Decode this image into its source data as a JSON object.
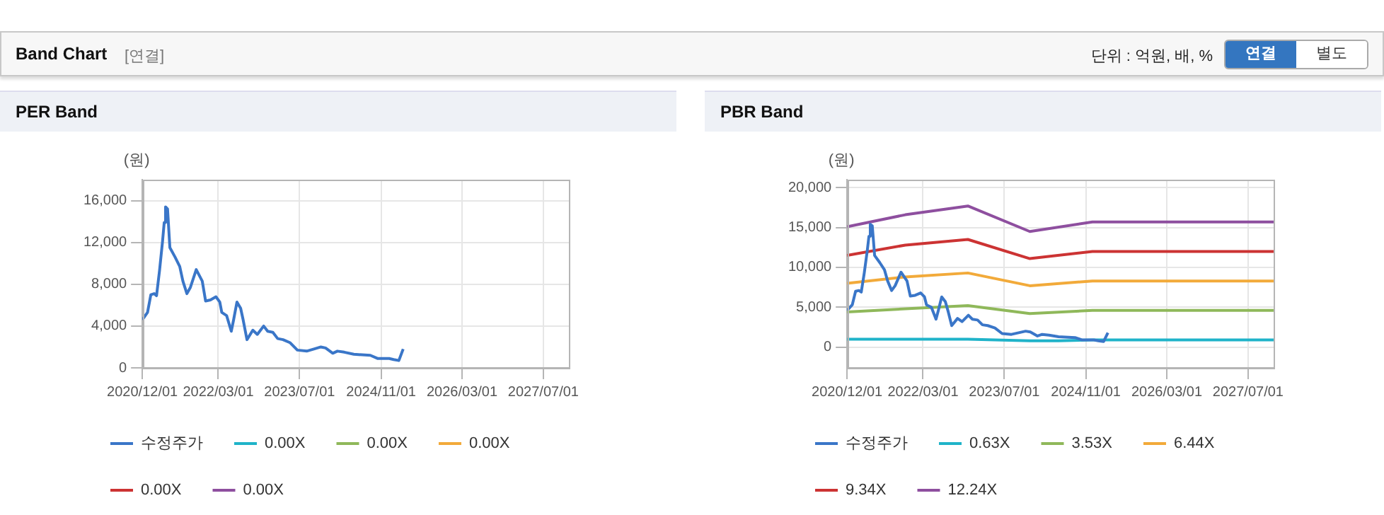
{
  "chart_data": [
    {
      "type": "other",
      "title": "Band Chart",
      "subtitle": "[연결]",
      "annotations": [
        "단위 : 억원, 배, %",
        "연결",
        "별도"
      ]
    },
    {
      "type": "line",
      "title": "PER Band",
      "ylabel": "(원)",
      "xlim": [
        "2020-12-01",
        "2027-12-01"
      ],
      "xticks": [
        {
          "value": "2020-12-01",
          "label": "2020/12/01"
        },
        {
          "value": "2022-03-01",
          "label": "2022/03/01"
        },
        {
          "value": "2023-07-01",
          "label": "2023/07/01"
        },
        {
          "value": "2024-11-01",
          "label": "2024/11/01"
        },
        {
          "value": "2026-03-01",
          "label": "2026/03/01"
        },
        {
          "value": "2027-07-01",
          "label": "2027/07/01"
        }
      ],
      "ylim": [
        0,
        18000
      ],
      "yticks": [
        0,
        {
          "value": 4000,
          "label": "4,000"
        },
        {
          "value": 8000,
          "label": "8,000"
        },
        {
          "value": 12000,
          "label": "12,000"
        },
        {
          "value": 16000,
          "label": "16,000"
        }
      ],
      "grid": true,
      "legend": "bottom",
      "marker": "none",
      "line_style": "solid",
      "series": [
        {
          "name": "수정주가",
          "color": "#3a76c8",
          "x": [
            "2020-12-01",
            "2021-01-01",
            "2021-01-21",
            "2021-02-10",
            "2021-02-24",
            "2021-03-14",
            "2021-04-01",
            "2021-04-11",
            "2021-04-19",
            "2021-05-01",
            "2021-05-15",
            "2021-06-15",
            "2021-07-13",
            "2021-08-01",
            "2021-08-25",
            "2021-09-15",
            "2021-10-20",
            "2021-11-25",
            "2021-12-15",
            "2022-01-13",
            "2022-02-15",
            "2022-03-10",
            "2022-03-22",
            "2022-04-20",
            "2022-05-18",
            "2022-06-01",
            "2022-06-21",
            "2022-07-13",
            "2022-07-28",
            "2022-08-20",
            "2022-09-24",
            "2022-10-21",
            "2022-11-28",
            "2022-12-22",
            "2023-01-22",
            "2023-02-20",
            "2023-03-24",
            "2023-05-06",
            "2023-06-18",
            "2023-08-13",
            "2023-09-25",
            "2023-11-06",
            "2023-12-04",
            "2024-01-16",
            "2024-02-13",
            "2024-03-25",
            "2024-05-21",
            "2024-08-28",
            "2024-10-10",
            "2024-12-19",
            "2025-01-15",
            "2025-02-15",
            "2025-03-13"
          ],
          "values": [
            4600,
            5300,
            7000,
            7100,
            6900,
            9300,
            12100,
            13900,
            15400,
            15200,
            11500,
            10600,
            9700,
            8300,
            7100,
            7700,
            9400,
            8300,
            6400,
            6500,
            6800,
            6300,
            5300,
            5000,
            3500,
            4600,
            6300,
            5700,
            4600,
            2700,
            3600,
            3200,
            4000,
            3500,
            3400,
            2800,
            2700,
            2400,
            1700,
            1600,
            1800,
            2000,
            1900,
            1400,
            1600,
            1500,
            1300,
            1200,
            900,
            900,
            800,
            700,
            1800
          ]
        },
        {
          "name": "0.00X",
          "color": "#1fb3c9"
        },
        {
          "name": "0.00X",
          "color": "#8fb85a"
        },
        {
          "name": "0.00X",
          "color": "#f2aa3a"
        },
        {
          "name": "0.00X",
          "color": "#cc3333"
        },
        {
          "name": "0.00X",
          "color": "#8e4f9f"
        }
      ]
    },
    {
      "type": "line",
      "title": "PBR Band",
      "ylabel": "(원)",
      "xlim": [
        "2020-12-01",
        "2027-12-01"
      ],
      "xticks": [
        {
          "value": "2020-12-01",
          "label": "2020/12/01"
        },
        {
          "value": "2022-03-01",
          "label": "2022/03/01"
        },
        {
          "value": "2023-07-01",
          "label": "2023/07/01"
        },
        {
          "value": "2024-11-01",
          "label": "2024/11/01"
        },
        {
          "value": "2026-03-01",
          "label": "2026/03/01"
        },
        {
          "value": "2027-07-01",
          "label": "2027/07/01"
        }
      ],
      "ylim": [
        -2600,
        21000
      ],
      "yticks": [
        0,
        {
          "value": 5000,
          "label": "5,000"
        },
        {
          "value": 10000,
          "label": "10,000"
        },
        {
          "value": 15000,
          "label": "15,000"
        },
        {
          "value": 20000,
          "label": "20,000"
        }
      ],
      "grid": true,
      "legend": "bottom",
      "marker": "none",
      "line_style": "solid",
      "series": [
        {
          "name": "수정주가",
          "color": "#3a76c8",
          "x": [
            "2020-12-01",
            "2021-01-01",
            "2021-01-21",
            "2021-02-10",
            "2021-02-24",
            "2021-03-14",
            "2021-04-01",
            "2021-04-11",
            "2021-04-19",
            "2021-05-01",
            "2021-05-15",
            "2021-06-15",
            "2021-07-13",
            "2021-08-01",
            "2021-08-25",
            "2021-09-15",
            "2021-10-20",
            "2021-11-25",
            "2021-12-15",
            "2022-01-13",
            "2022-02-15",
            "2022-03-10",
            "2022-03-22",
            "2022-04-20",
            "2022-05-18",
            "2022-06-01",
            "2022-06-21",
            "2022-07-13",
            "2022-07-28",
            "2022-08-20",
            "2022-09-24",
            "2022-10-21",
            "2022-11-28",
            "2022-12-22",
            "2023-01-22",
            "2023-02-20",
            "2023-03-24",
            "2023-05-06",
            "2023-06-18",
            "2023-08-13",
            "2023-09-25",
            "2023-11-06",
            "2023-12-04",
            "2024-01-16",
            "2024-02-13",
            "2024-03-25",
            "2024-05-21",
            "2024-08-28",
            "2024-10-10",
            "2024-12-19",
            "2025-01-15",
            "2025-02-15",
            "2025-03-13"
          ],
          "values": [
            4600,
            5300,
            7000,
            7100,
            6900,
            9300,
            12100,
            13900,
            15400,
            15200,
            11500,
            10600,
            9700,
            8300,
            7100,
            7700,
            9400,
            8300,
            6400,
            6500,
            6800,
            6300,
            5300,
            5000,
            3500,
            4600,
            6300,
            5700,
            4600,
            2700,
            3600,
            3200,
            4000,
            3500,
            3400,
            2800,
            2700,
            2400,
            1700,
            1600,
            1800,
            2000,
            1900,
            1400,
            1600,
            1500,
            1300,
            1200,
            900,
            900,
            800,
            700,
            1800
          ]
        },
        {
          "name": "0.63X",
          "color": "#1fb3c9",
          "x": [
            "2020-12-01",
            "2022-11-25",
            "2023-12-01",
            "2024-05-21",
            "2024-12-10",
            "2027-12-01"
          ],
          "values": [
            1000,
            1000,
            800,
            800,
            900,
            900
          ]
        },
        {
          "name": "3.53X",
          "color": "#8fb85a",
          "x": [
            "2020-12-01",
            "2021-11-15",
            "2022-11-25",
            "2023-12-01",
            "2024-12-10",
            "2027-12-01"
          ],
          "values": [
            4400,
            4800,
            5200,
            4200,
            4600,
            4600
          ]
        },
        {
          "name": "6.44X",
          "color": "#f2aa3a",
          "x": [
            "2020-12-01",
            "2021-11-15",
            "2022-11-25",
            "2023-12-01",
            "2024-12-10",
            "2027-12-01"
          ],
          "values": [
            8000,
            8800,
            9300,
            7700,
            8300,
            8300
          ]
        },
        {
          "name": "9.34X",
          "color": "#cc3333",
          "x": [
            "2020-12-01",
            "2021-11-15",
            "2022-11-25",
            "2023-12-01",
            "2024-12-10",
            "2027-12-01"
          ],
          "values": [
            11500,
            12800,
            13500,
            11100,
            12000,
            12000
          ]
        },
        {
          "name": "12.24X",
          "color": "#8e4f9f",
          "x": [
            "2020-12-01",
            "2021-11-15",
            "2022-11-25",
            "2023-12-01",
            "2024-12-10",
            "2027-12-01"
          ],
          "values": [
            15100,
            16600,
            17700,
            14500,
            15700,
            15700
          ]
        }
      ]
    }
  ]
}
